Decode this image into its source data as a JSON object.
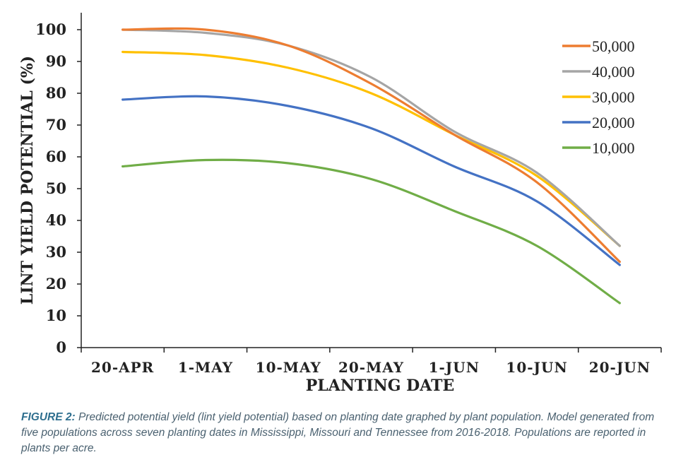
{
  "caption": {
    "label": "FIGURE 2:",
    "text": " Predicted potential yield (lint yield potential) based on planting date graphed by plant population. Model generated from five populations across seven planting dates in Mississippi, Missouri and Tennessee from 2016-2018. Populations are reported in plants per acre."
  },
  "chart_data": {
    "type": "line",
    "title": "",
    "xlabel": "PLANTING DATE",
    "ylabel": "LINT YIELD POTENTIAL (%)",
    "categories": [
      "20-APR",
      "1-MAY",
      "10-MAY",
      "20-MAY",
      "1-JUN",
      "10-JUN",
      "20-JUN"
    ],
    "ylim": [
      0,
      100
    ],
    "yticks": [
      0,
      10,
      20,
      30,
      40,
      50,
      60,
      70,
      80,
      90,
      100
    ],
    "grid": false,
    "legend_position": "top-right",
    "series": [
      {
        "name": "50,000",
        "color": "#ED7D31",
        "values": [
          100,
          100,
          95,
          83,
          67,
          52,
          27
        ]
      },
      {
        "name": "40,000",
        "color": "#A5A5A5",
        "values": [
          100,
          99,
          95,
          85,
          68,
          55,
          32
        ]
      },
      {
        "name": "30,000",
        "color": "#FFC000",
        "values": [
          93,
          92,
          88,
          80,
          67,
          54,
          32
        ]
      },
      {
        "name": "20,000",
        "color": "#4472C4",
        "values": [
          78,
          79,
          76,
          69,
          57,
          46,
          26
        ]
      },
      {
        "name": "10,000",
        "color": "#70AD47",
        "values": [
          57,
          59,
          58,
          53,
          43,
          32,
          14
        ]
      }
    ]
  }
}
